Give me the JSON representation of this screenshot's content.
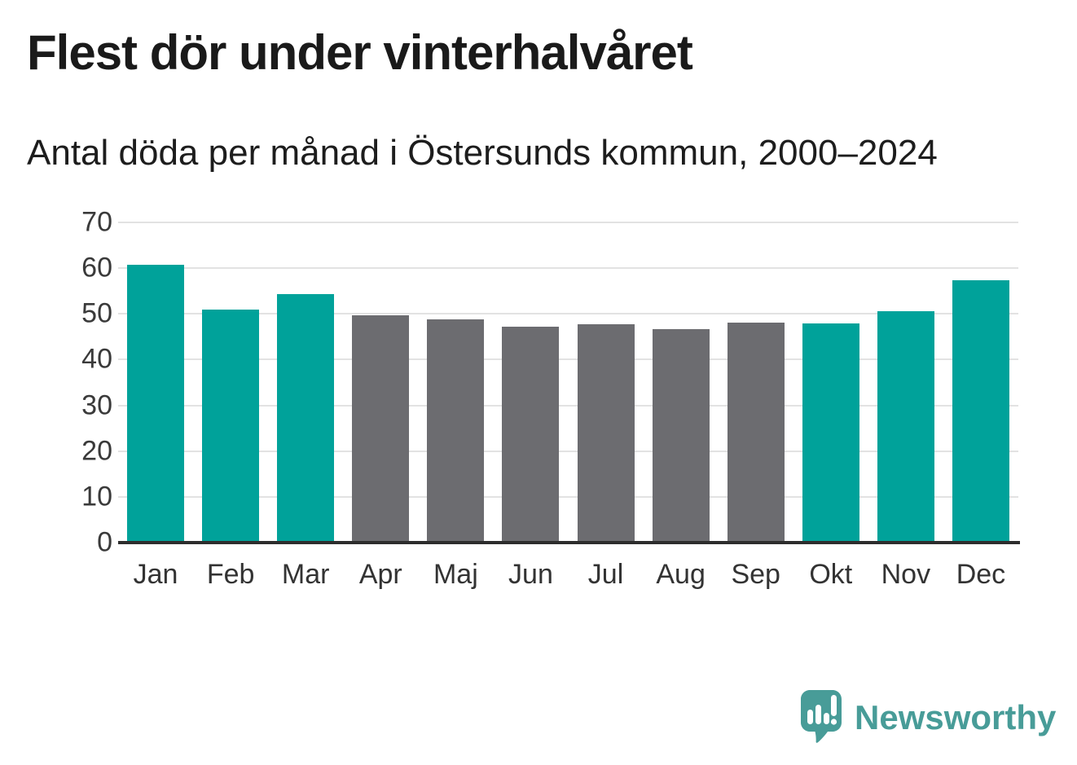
{
  "header": {
    "title": "Flest dör under vinterhalvåret",
    "subtitle": "Antal döda per månad i Östersunds kommun, 2000–2024"
  },
  "chart_data": {
    "type": "bar",
    "title": "Flest dör under vinterhalvåret",
    "subtitle": "Antal döda per månad i Östersunds kommun, 2000–2024",
    "categories": [
      "Jan",
      "Feb",
      "Mar",
      "Apr",
      "Maj",
      "Jun",
      "Jul",
      "Aug",
      "Sep",
      "Okt",
      "Nov",
      "Dec"
    ],
    "values": [
      60.7,
      50.9,
      54.3,
      49.7,
      48.8,
      47.2,
      47.7,
      46.7,
      48.1,
      48.0,
      50.6,
      57.4
    ],
    "bar_color_keys": [
      "winter",
      "winter",
      "winter",
      "summer",
      "summer",
      "summer",
      "summer",
      "summer",
      "summer",
      "winter",
      "winter",
      "winter"
    ],
    "colors": {
      "winter": "#00a29a",
      "summer": "#6c6c70",
      "gridline": "#e2e2e2",
      "axis": "#2d2d2d"
    },
    "xlabel": "",
    "ylabel": "",
    "ylim": [
      0,
      70
    ],
    "yticks": [
      0,
      10,
      20,
      30,
      40,
      50,
      60,
      70
    ],
    "grid": "horizontal",
    "legend": "none"
  },
  "branding": {
    "logo_text": "Newsworthy",
    "logo_color": "#489c98",
    "logo_icon": "speech-bubble-bar-chart-exclamation-icon"
  }
}
